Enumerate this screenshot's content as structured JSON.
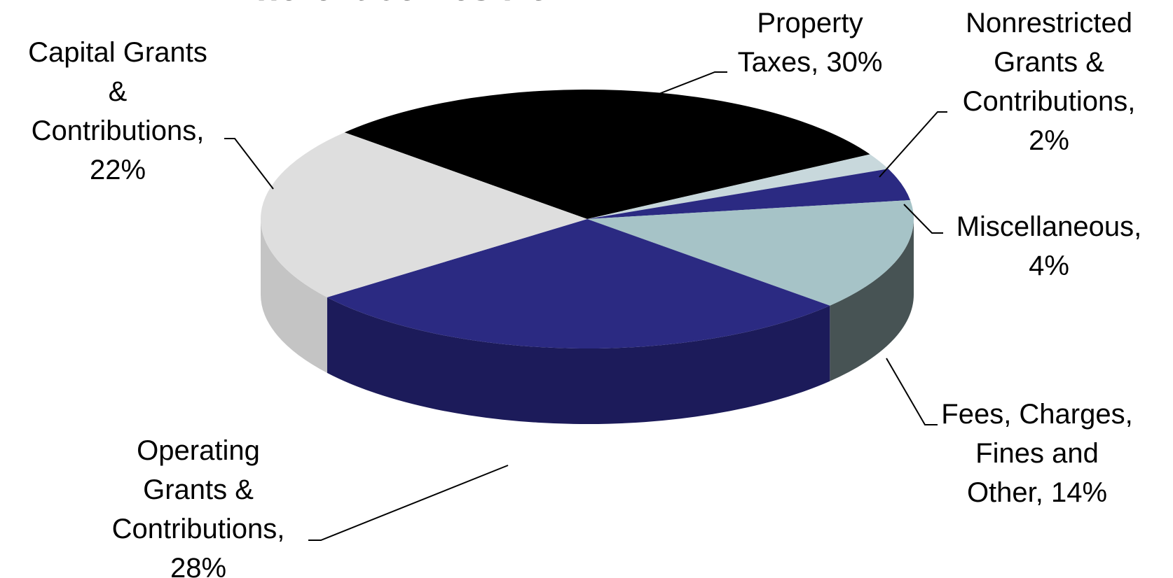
{
  "chart_data": {
    "type": "pie",
    "title": "Where it comes from…",
    "slices": [
      {
        "lines": [
          "Property",
          "Taxes, 30%"
        ],
        "value": 30,
        "color": "#000000",
        "side_color": "#000000"
      },
      {
        "lines": [
          "Nonrestricted",
          "Grants &",
          "Contributions,",
          "2%"
        ],
        "value": 2,
        "color": "#c8d8dc",
        "side_color": "#8a9a9e"
      },
      {
        "lines": [
          "Miscellaneous,",
          "4%"
        ],
        "value": 4,
        "color": "#2b2a82",
        "side_color": "#1a1a52"
      },
      {
        "lines": [
          "Fees, Charges,",
          "Fines and",
          "Other, 14%"
        ],
        "value": 14,
        "color": "#a6c3c7",
        "side_color": "#475354"
      },
      {
        "lines": [
          "Operating",
          "Grants &",
          "Contributions,",
          "28%"
        ],
        "value": 28,
        "color": "#2b2a82",
        "side_color": "#1c1b5a"
      },
      {
        "lines": [
          "Capital Grants",
          "&",
          "Contributions,",
          "22%"
        ],
        "value": 22,
        "color": "#dedede",
        "side_color": "#c4c4c4"
      }
    ]
  }
}
